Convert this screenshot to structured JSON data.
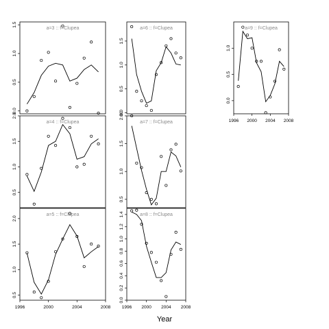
{
  "xlabel": "Year",
  "chart_data": [
    {
      "type": "scatter",
      "title": "a=3 :: f=Clupea",
      "xlim": [
        1996,
        2008
      ],
      "ylim": [
        -0.05,
        1.55
      ],
      "yticks": [
        0.0,
        0.5,
        1.0,
        1.5
      ],
      "ytick_labels": [
        "0.0",
        "0.5",
        "1.0",
        "1.5"
      ],
      "xticks": [],
      "xtick_labels": [],
      "observed": {
        "x": [
          1997,
          1998,
          1999,
          2000,
          2001,
          2002,
          2003,
          2004,
          2005,
          2006,
          2007
        ],
        "y": [
          0.0,
          0.25,
          0.88,
          1.02,
          0.52,
          1.48,
          0.06,
          0.48,
          0.92,
          1.2,
          -0.04
        ]
      },
      "fitted": {
        "x": [
          1997,
          1998,
          1999,
          2000,
          2001,
          2002,
          2003,
          2004,
          2005,
          2006,
          2007
        ],
        "y": [
          0.12,
          0.32,
          0.62,
          0.78,
          0.83,
          0.8,
          0.52,
          0.57,
          0.72,
          0.8,
          0.68
        ]
      }
    },
    {
      "type": "scatter",
      "title": "a=4 :: f=Clupea",
      "xlim": [
        1996,
        2008
      ],
      "ylim": [
        0.2,
        2.0
      ],
      "yticks": [
        0.5,
        1.0,
        1.5,
        2.0
      ],
      "ytick_labels": [
        "0.5",
        "1.0",
        "1.5",
        "2.0"
      ],
      "xticks": [],
      "xtick_labels": [],
      "observed": {
        "x": [
          1997,
          1998,
          1999,
          2000,
          2001,
          2002,
          2003,
          2004,
          2005,
          2006,
          2007
        ],
        "y": [
          0.85,
          0.27,
          0.97,
          1.6,
          1.42,
          1.95,
          1.77,
          1.0,
          1.05,
          1.6,
          1.45
        ]
      },
      "fitted": {
        "x": [
          1997,
          1998,
          1999,
          2000,
          2001,
          2002,
          2003,
          2004,
          2005,
          2006,
          2007
        ],
        "y": [
          0.82,
          0.52,
          0.9,
          1.42,
          1.5,
          1.83,
          1.65,
          1.15,
          1.2,
          1.45,
          1.55
        ]
      }
    },
    {
      "type": "scatter",
      "title": "a=5 :: f=Clupea",
      "xlim": [
        1996,
        2008
      ],
      "ylim": [
        0.4,
        2.2
      ],
      "yticks": [
        0.5,
        1.0,
        1.5,
        2.0
      ],
      "ytick_labels": [
        "0.5",
        "1.0",
        "1.5",
        "2.0"
      ],
      "xticks": [
        1996,
        2000,
        2004,
        2008
      ],
      "xtick_labels": [
        "1996",
        "2000",
        "2004",
        "2008"
      ],
      "observed": {
        "x": [
          1997,
          1998,
          1999,
          2000,
          2001,
          2002,
          2003,
          2004,
          2005,
          2006,
          2007
        ],
        "y": [
          1.33,
          0.56,
          0.45,
          0.77,
          1.35,
          1.6,
          2.1,
          1.65,
          1.06,
          1.5,
          1.46
        ]
      },
      "fitted": {
        "x": [
          1997,
          1998,
          1999,
          2000,
          2001,
          2002,
          2003,
          2004,
          2005,
          2006,
          2007
        ],
        "y": [
          1.32,
          0.75,
          0.52,
          0.8,
          1.3,
          1.6,
          1.88,
          1.66,
          1.23,
          1.35,
          1.45
        ]
      }
    },
    {
      "type": "scatter",
      "title": "a=6 :: f=Clupea",
      "xlim": [
        1996,
        2008
      ],
      "ylim": [
        -0.02,
        1.9
      ],
      "yticks": [
        0.0,
        0.5,
        1.0,
        1.5
      ],
      "ytick_labels": [
        "0.0",
        "0.5",
        "1.0",
        "1.5"
      ],
      "xticks": [],
      "xtick_labels": [],
      "observed": {
        "x": [
          1997,
          1998,
          1999,
          2000,
          2001,
          2002,
          2003,
          2004,
          2005,
          2006,
          2007
        ],
        "y": [
          1.8,
          0.45,
          0.25,
          0.15,
          0.05,
          0.8,
          1.05,
          1.4,
          1.55,
          1.25,
          1.15
        ]
      },
      "fitted": {
        "x": [
          1997,
          1998,
          1999,
          2000,
          2001,
          2002,
          2003,
          2004,
          2005,
          2006,
          2007
        ],
        "y": [
          1.55,
          0.8,
          0.45,
          0.2,
          0.25,
          0.88,
          1.05,
          1.38,
          1.25,
          1.02,
          1.0
        ]
      }
    },
    {
      "type": "scatter",
      "title": "a=7 :: f=Clupea",
      "xlim": [
        1996,
        2008
      ],
      "ylim": [
        0.35,
        2.0
      ],
      "yticks": [
        0.5,
        1.0,
        1.5,
        2.0
      ],
      "ytick_labels": [
        "0.5",
        "1.0",
        "1.5",
        "2.00"
      ],
      "xticks": [],
      "xtick_labels": [],
      "observed": {
        "x": [
          1997,
          1998,
          1999,
          2000,
          2001,
          2002,
          2003,
          2004,
          2005,
          2006,
          2007
        ],
        "y": [
          2.0,
          1.15,
          1.07,
          0.62,
          0.5,
          0.42,
          1.27,
          0.75,
          1.39,
          1.49,
          1.01
        ]
      },
      "fitted": {
        "x": [
          1997,
          1998,
          1999,
          2000,
          2001,
          2002,
          2003,
          2004,
          2005,
          2006,
          2007
        ],
        "y": [
          1.82,
          1.42,
          1.02,
          0.68,
          0.4,
          0.52,
          1.0,
          1.0,
          1.35,
          1.28,
          1.08
        ]
      }
    },
    {
      "type": "scatter",
      "title": "a=8 :: f=Clupea",
      "xlim": [
        1996,
        2008
      ],
      "ylim": [
        0.0,
        1.5
      ],
      "yticks": [
        0.0,
        0.2,
        0.4,
        0.6,
        0.8,
        1.0,
        1.2,
        1.4
      ],
      "ytick_labels": [
        "0.0",
        "0.2",
        "0.4",
        "0.6",
        "0.8",
        "1.0",
        "1.2",
        "1.4"
      ],
      "xticks": [
        1996,
        2000,
        2004,
        2008
      ],
      "xtick_labels": [
        "1996",
        "2000",
        "2004",
        "2008"
      ],
      "observed": {
        "x": [
          1997,
          1998,
          1999,
          2000,
          2001,
          2002,
          2003,
          2004,
          2005,
          2006,
          2007
        ],
        "y": [
          1.46,
          1.47,
          1.24,
          0.93,
          0.78,
          0.62,
          0.32,
          0.06,
          0.75,
          1.11,
          0.83
        ]
      },
      "fitted": {
        "x": [
          1997,
          1998,
          1999,
          2000,
          2001,
          2002,
          2003,
          2004,
          2005,
          2006,
          2007
        ],
        "y": [
          1.44,
          1.4,
          1.3,
          0.88,
          0.62,
          0.37,
          0.37,
          0.45,
          0.82,
          0.95,
          0.91
        ]
      }
    },
    {
      "type": "scatter",
      "title": "a=9 :: f=Clupea",
      "xlim": [
        1996,
        2008
      ],
      "ylim": [
        -0.25,
        1.5
      ],
      "yticks": [
        0.0,
        0.5,
        1.0
      ],
      "ytick_labels": [
        "0.0",
        "0.5",
        "1.0"
      ],
      "xticks": [
        1996,
        2000,
        2004,
        2008
      ],
      "xtick_labels": [
        "1996",
        "2000",
        "2004",
        "2008"
      ],
      "observed": {
        "x": [
          1997,
          1998,
          1999,
          2000,
          2001,
          2002,
          2003,
          2004,
          2005,
          2006,
          2007
        ],
        "y": [
          0.27,
          1.4,
          1.25,
          1.0,
          0.75,
          0.75,
          -0.23,
          0.07,
          0.37,
          0.97,
          0.6
        ]
      },
      "fitted": {
        "x": [
          1997,
          1998,
          1999,
          2000,
          2001,
          2002,
          2003,
          2004,
          2005,
          2006,
          2007
        ],
        "y": [
          0.38,
          1.32,
          1.18,
          1.2,
          0.72,
          0.55,
          -0.02,
          0.1,
          0.32,
          0.75,
          0.65
        ]
      }
    }
  ]
}
